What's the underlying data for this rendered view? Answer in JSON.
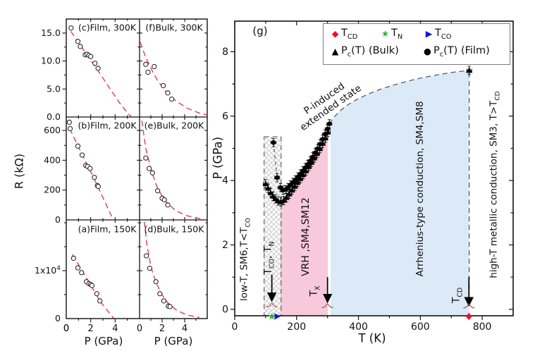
{
  "chart_data": [
    {
      "id": "a",
      "type": "scatter",
      "title": "(a)Film, 150K",
      "xlabel": "P (GPa)",
      "ylabel": "R (kΩ)",
      "xlim": [
        0,
        6
      ],
      "ylim": [
        0,
        20600
      ],
      "x_ticks": [
        0,
        2,
        4
      ],
      "x_minor": [
        1,
        3,
        5
      ],
      "y_ticks": [
        {
          "v": 0,
          "l": "0"
        },
        {
          "v": 10000,
          "l": "1x10^4"
        }
      ],
      "y_minor": [
        5000,
        15000,
        20000
      ],
      "points": [
        [
          0.6,
          12600
        ],
        [
          0.95,
          10600
        ],
        [
          1.25,
          9600
        ],
        [
          1.65,
          7700
        ],
        [
          1.85,
          7300
        ],
        [
          2.0,
          7100
        ],
        [
          2.1,
          6900
        ],
        [
          2.5,
          5200
        ],
        [
          2.75,
          3700
        ]
      ],
      "fit_line": [
        [
          0.5,
          13400
        ],
        [
          1.2,
          10400
        ],
        [
          2.0,
          7000
        ],
        [
          2.8,
          3500
        ],
        [
          3.9,
          0
        ]
      ]
    },
    {
      "id": "b",
      "type": "scatter",
      "title": "(b)Film, 200K",
      "xlabel": "P (GPa)",
      "ylabel": "R (kΩ)",
      "xlim": [
        0,
        6
      ],
      "ylim": [
        0,
        690
      ],
      "x_ticks": [
        0,
        2,
        4
      ],
      "x_minor": [
        1,
        3,
        5
      ],
      "y_ticks": [
        {
          "v": 0,
          "l": "0"
        },
        {
          "v": 200,
          "l": "200"
        },
        {
          "v": 400,
          "l": "400"
        },
        {
          "v": 600,
          "l": "600"
        }
      ],
      "y_minor": [
        100,
        300,
        500
      ],
      "points": [
        [
          0.25,
          655
        ],
        [
          0.32,
          612
        ],
        [
          0.95,
          495
        ],
        [
          1.3,
          435
        ],
        [
          1.6,
          365
        ],
        [
          1.75,
          358
        ],
        [
          1.95,
          345
        ],
        [
          2.3,
          285
        ],
        [
          2.55,
          230
        ],
        [
          2.62,
          224
        ]
      ],
      "fit_line": [
        [
          0.28,
          612
        ],
        [
          1.2,
          455
        ],
        [
          2.2,
          290
        ],
        [
          3.0,
          150
        ],
        [
          3.85,
          0
        ]
      ]
    },
    {
      "id": "c",
      "type": "scatter",
      "title": "(c)Film, 300K",
      "xlabel": "P (GPa)",
      "ylabel": "R (kΩ)",
      "xlim": [
        0,
        6
      ],
      "ylim": [
        0,
        17.5
      ],
      "x_ticks": [
        0,
        2,
        4
      ],
      "x_minor": [
        1,
        3,
        5
      ],
      "y_ticks": [
        {
          "v": 0,
          "l": "0.0"
        },
        {
          "v": 5,
          "l": "5.0"
        },
        {
          "v": 10,
          "l": "10.0"
        },
        {
          "v": 15,
          "l": "15.0"
        }
      ],
      "y_minor": [
        2.5,
        7.5,
        12.5
      ],
      "points": [
        [
          0.4,
          15.9
        ],
        [
          0.95,
          13.5
        ],
        [
          1.15,
          12.6
        ],
        [
          1.55,
          11.1
        ],
        [
          1.7,
          11.2
        ],
        [
          1.85,
          11.0
        ],
        [
          2.0,
          10.8
        ],
        [
          2.35,
          9.6
        ],
        [
          2.6,
          8.7
        ]
      ],
      "fit_line": [
        [
          0.38,
          15.3
        ],
        [
          1.5,
          11.7
        ],
        [
          2.5,
          8.6
        ],
        [
          3.5,
          5.3
        ],
        [
          4.5,
          2.1
        ],
        [
          5.3,
          0
        ]
      ]
    },
    {
      "id": "d",
      "type": "scatter",
      "title": "(d)Bulk, 150K",
      "xlabel": "P (GPa)",
      "ylabel": "R (kΩ)",
      "xlim": [
        0,
        6
      ],
      "ylim": [
        0,
        20600
      ],
      "x_ticks": [
        0,
        2,
        4
      ],
      "x_minor": [
        1,
        3,
        5
      ],
      "y_ticks": [
        {
          "v": 0,
          "l": ""
        },
        {
          "v": 10000,
          "l": ""
        }
      ],
      "y_minor": [
        5000,
        15000,
        20000
      ],
      "points": [
        [
          0.6,
          13100
        ],
        [
          0.9,
          10500
        ],
        [
          1.45,
          7700
        ],
        [
          1.8,
          5200
        ],
        [
          2.15,
          3700
        ],
        [
          2.55,
          2600
        ],
        [
          2.7,
          2500
        ]
      ],
      "fit_line": [
        [
          0.42,
          20200
        ],
        [
          0.65,
          15500
        ],
        [
          1.0,
          10800
        ],
        [
          1.4,
          7900
        ],
        [
          1.9,
          5300
        ],
        [
          2.5,
          3300
        ],
        [
          3.3,
          1700
        ],
        [
          4.2,
          750
        ],
        [
          5.3,
          250
        ]
      ]
    },
    {
      "id": "e",
      "type": "scatter",
      "title": "(e)Bulk, 200K",
      "xlabel": "P (GPa)",
      "ylabel": "R (kΩ)",
      "xlim": [
        0,
        6
      ],
      "ylim": [
        0,
        690
      ],
      "x_ticks": [
        0,
        2,
        4
      ],
      "x_minor": [
        1,
        3,
        5
      ],
      "y_ticks": [
        {
          "v": 0,
          "l": ""
        },
        {
          "v": 200,
          "l": ""
        },
        {
          "v": 400,
          "l": ""
        },
        {
          "v": 600,
          "l": ""
        }
      ],
      "y_minor": [
        100,
        300,
        500
      ],
      "points": [
        [
          0.55,
          415
        ],
        [
          0.85,
          345
        ],
        [
          1.15,
          315
        ],
        [
          1.6,
          195
        ],
        [
          2.0,
          145
        ],
        [
          2.2,
          135
        ],
        [
          2.5,
          100
        ]
      ],
      "fit_line": [
        [
          0.2,
          665
        ],
        [
          0.55,
          480
        ],
        [
          1.0,
          340
        ],
        [
          1.6,
          210
        ],
        [
          2.3,
          125
        ],
        [
          3.2,
          62
        ],
        [
          4.2,
          28
        ],
        [
          5.4,
          8
        ]
      ]
    },
    {
      "id": "f",
      "type": "scatter",
      "title": "(f)Bulk, 300K",
      "xlabel": "P (GPa)",
      "ylabel": "R (kΩ)",
      "xlim": [
        0,
        6
      ],
      "ylim": [
        0,
        17.5
      ],
      "x_ticks": [
        0,
        2,
        4
      ],
      "x_minor": [
        1,
        3,
        5
      ],
      "y_ticks": [
        {
          "v": 0,
          "l": ""
        },
        {
          "v": 5,
          "l": ""
        },
        {
          "v": 10,
          "l": ""
        },
        {
          "v": 15,
          "l": ""
        }
      ],
      "y_minor": [
        2.5,
        7.5,
        12.5
      ],
      "points": [
        [
          0.55,
          9.4
        ],
        [
          0.75,
          8.0
        ],
        [
          1.3,
          9.0
        ],
        [
          2.1,
          5.6
        ],
        [
          2.5,
          4.3
        ],
        [
          2.85,
          3.2
        ]
      ],
      "fit_line": [
        [
          0.05,
          13.4
        ],
        [
          0.5,
          10.9
        ],
        [
          1.0,
          8.7
        ],
        [
          1.6,
          6.5
        ],
        [
          2.3,
          4.6
        ],
        [
          3.2,
          2.9
        ],
        [
          4.2,
          1.6
        ],
        [
          5.3,
          0.7
        ],
        [
          5.95,
          0.4
        ]
      ]
    },
    {
      "id": "g",
      "type": "scatter",
      "title": "(g)",
      "xlabel": "T (K)",
      "ylabel": "P (GPa)",
      "xlim": [
        0,
        900
      ],
      "ylim": [
        -0.2,
        8.95
      ],
      "x_ticks": [
        0,
        200,
        400,
        600,
        800
      ],
      "x_minor": [
        100,
        300,
        500,
        700
      ],
      "y_ticks": [
        0,
        2,
        4,
        6,
        8
      ],
      "y_minor": [
        1,
        3,
        5,
        7
      ],
      "legend": [
        {
          "glyph": "◆",
          "color": "#e8112d",
          "rich": [
            {
              "t": "T"
            },
            {
              "sub": "CD"
            }
          ]
        },
        {
          "glyph": "★",
          "color": "#22bb22",
          "rich": [
            {
              "t": "T"
            },
            {
              "sub": "N"
            }
          ]
        },
        {
          "glyph": "▶",
          "color": "#1515dd",
          "rich": [
            {
              "t": "T"
            },
            {
              "sub": "CO"
            }
          ]
        },
        {
          "glyph": "▲",
          "color": "#000000",
          "rich": [
            {
              "t": "P"
            },
            {
              "sub": "c"
            },
            {
              "t": "(T) (Bulk)"
            }
          ]
        },
        {
          "glyph": "●",
          "color": "#000000",
          "rich": [
            {
              "t": "P"
            },
            {
              "sub": "c"
            },
            {
              "t": "(T) (Film)"
            }
          ]
        }
      ],
      "series": {
        "film": {
          "name": "Pc(T) (Film)",
          "marker": "circle",
          "color": "#000000",
          "points": [
            [
              125,
              5.18
            ],
            [
              137,
              4.09
            ],
            [
              148,
              3.78
            ],
            [
              156,
              3.7
            ],
            [
              164,
              3.72
            ],
            [
              172,
              3.78
            ],
            [
              180,
              3.86
            ],
            [
              188,
              3.94
            ],
            [
              196,
              4.02
            ],
            [
              204,
              4.11
            ],
            [
              212,
              4.2
            ],
            [
              220,
              4.3
            ],
            [
              228,
              4.4
            ],
            [
              236,
              4.5
            ],
            [
              244,
              4.61
            ],
            [
              252,
              4.73
            ],
            [
              260,
              4.86
            ],
            [
              268,
              4.99
            ],
            [
              276,
              5.13
            ],
            [
              284,
              5.28
            ],
            [
              292,
              5.44
            ],
            [
              300,
              5.6
            ],
            [
              306,
              5.76
            ]
          ]
        },
        "bulk": {
          "name": "Pc(T) (Bulk)",
          "marker": "triangle-up",
          "color": "#000000",
          "points": [
            [
              100,
              3.9
            ],
            [
              108,
              3.76
            ],
            [
              116,
              3.62
            ],
            [
              124,
              3.51
            ],
            [
              132,
              3.43
            ],
            [
              140,
              3.37
            ],
            [
              149,
              3.34
            ],
            [
              158,
              3.38
            ],
            [
              167,
              3.47
            ],
            [
              176,
              3.58
            ],
            [
              185,
              3.7
            ],
            [
              194,
              3.82
            ],
            [
              203,
              3.94
            ],
            [
              212,
              4.06
            ],
            [
              221,
              4.18
            ],
            [
              230,
              4.3
            ],
            [
              239,
              4.43
            ],
            [
              248,
              4.56
            ],
            [
              257,
              4.7
            ],
            [
              266,
              4.84
            ],
            [
              275,
              4.99
            ],
            [
              284,
              5.15
            ],
            [
              293,
              5.32
            ],
            [
              301,
              5.5
            ],
            [
              758,
              7.42
            ]
          ]
        }
      },
      "error_bars": {
        "x_err_K": 8,
        "y_err_GPa": 0.13
      },
      "boundary_curve": [
        [
          306,
          5.76
        ],
        [
          320,
          5.96
        ],
        [
          340,
          6.16
        ],
        [
          365,
          6.35
        ],
        [
          395,
          6.52
        ],
        [
          430,
          6.68
        ],
        [
          470,
          6.83
        ],
        [
          515,
          6.97
        ],
        [
          560,
          7.09
        ],
        [
          610,
          7.2
        ],
        [
          660,
          7.29
        ],
        [
          710,
          7.37
        ],
        [
          758,
          7.42
        ]
      ],
      "boundary_end_point": [
        758,
        7.42
      ],
      "dashed_connector": [
        [
          125,
          5.18
        ],
        [
          137,
          4.09
        ]
      ],
      "dashed_vertical_T": 758,
      "regions": {
        "hatched": {
          "T": [
            95,
            150
          ],
          "P_top": 5.36
        },
        "vrh_pink": {
          "T": [
            148,
            301
          ],
          "color": "#f7c9da"
        },
        "arrhenius_blue": {
          "T": [
            310,
            758
          ],
          "color": "#dce9f6"
        }
      },
      "arrows": [
        {
          "T": 120,
          "P_from": 1.08,
          "P_to": 0.3
        },
        {
          "T": 300,
          "P_from": 1.0,
          "P_to": 0.26
        },
        {
          "T": 757,
          "P_from": 1.0,
          "P_to": 0.16
        }
      ],
      "braces": [
        {
          "T": 120,
          "P": 0.13
        },
        {
          "T": 300,
          "P": 0.11
        },
        {
          "T": 757,
          "P": 0.1
        }
      ],
      "axis_markers": [
        {
          "type": "star",
          "color": "#22bb22",
          "T": 120
        },
        {
          "type": "triangle-right",
          "color": "#1515dd",
          "T": 136
        },
        {
          "type": "diamond",
          "color": "#e8112d",
          "T": 757
        }
      ],
      "region_labels": {
        "low_t": {
          "rich": [
            {
              "t": "low-T, SM6,T<T"
            },
            {
              "sub": "CO"
            }
          ]
        },
        "tco_tn": {
          "rich": [
            {
              "t": "T"
            },
            {
              "sub": "CO"
            },
            {
              "t": ", T"
            },
            {
              "sub": "N"
            }
          ]
        },
        "vrh": {
          "rich": [
            {
              "t": "VRH ,SM4,SM12"
            }
          ]
        },
        "tx": {
          "rich": [
            {
              "t": "T"
            },
            {
              "sub": "X"
            }
          ]
        },
        "arrhenius": {
          "rich": [
            {
              "t": "Arrhenius-type conduction, SM4,SM8"
            }
          ]
        },
        "tcd": {
          "rich": [
            {
              "t": "T"
            },
            {
              "sub": "CD"
            }
          ]
        },
        "high_t": {
          "rich": [
            {
              "t": "high-T metallic conduction, SM3, T>T"
            },
            {
              "sub": "CD"
            }
          ]
        },
        "p_induced": {
          "line1": "P-induced",
          "line2": "extended state"
        }
      },
      "fit_color": "#e23b4e"
    }
  ]
}
